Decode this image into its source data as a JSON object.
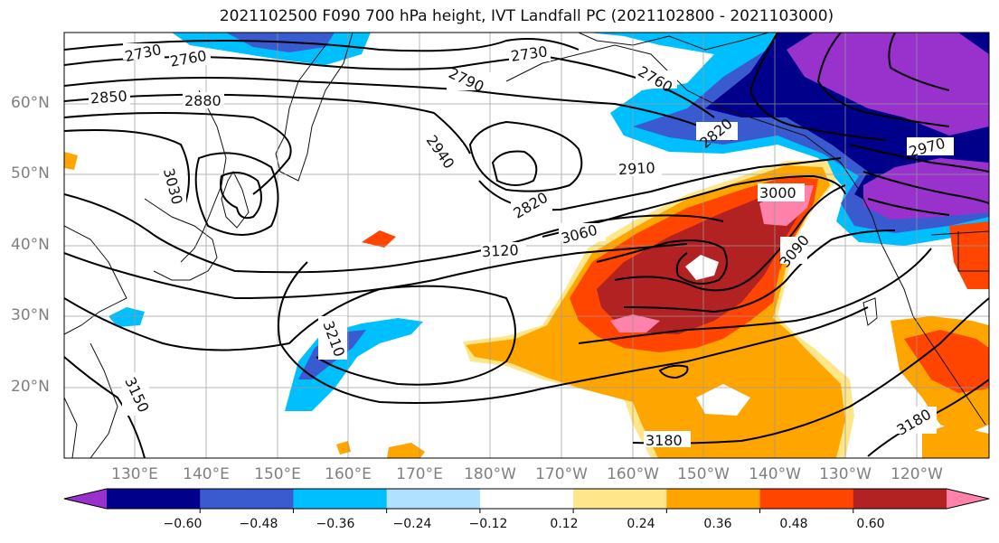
{
  "title": "2021102500 F090 700 hPa height, IVT Landfall PC (2021102800 - 2021103000)",
  "lat_labels": [
    "60°N",
    "50°N",
    "40°N",
    "30°N",
    "20°N"
  ],
  "lon_labels": [
    "130°E",
    "140°E",
    "150°E",
    "160°E",
    "170°E",
    "180°W",
    "170°W",
    "160°W",
    "150°W",
    "140°W",
    "130°W",
    "120°W"
  ],
  "colorbar": {
    "ticks": [
      "−0.60",
      "−0.48",
      "−0.36",
      "−0.24",
      "−0.12",
      "0.12",
      "0.24",
      "0.36",
      "0.48",
      "0.60"
    ],
    "colors": [
      "#9932cc",
      "#00008b",
      "#3a5bd0",
      "#00bfff",
      "#b0e2ff",
      "#ffffff",
      "#ffe68a",
      "#ffa500",
      "#ff4500",
      "#b22222",
      "#ff82ab"
    ]
  },
  "contour_labels": [
    "2730",
    "2760",
    "2850",
    "2880",
    "2730",
    "2790",
    "2760",
    "2820",
    "2940",
    "3030",
    "2910",
    "2820",
    "3000",
    "2970",
    "3060",
    "3120",
    "3090",
    "3210",
    "3150",
    "3180",
    "3180"
  ]
}
